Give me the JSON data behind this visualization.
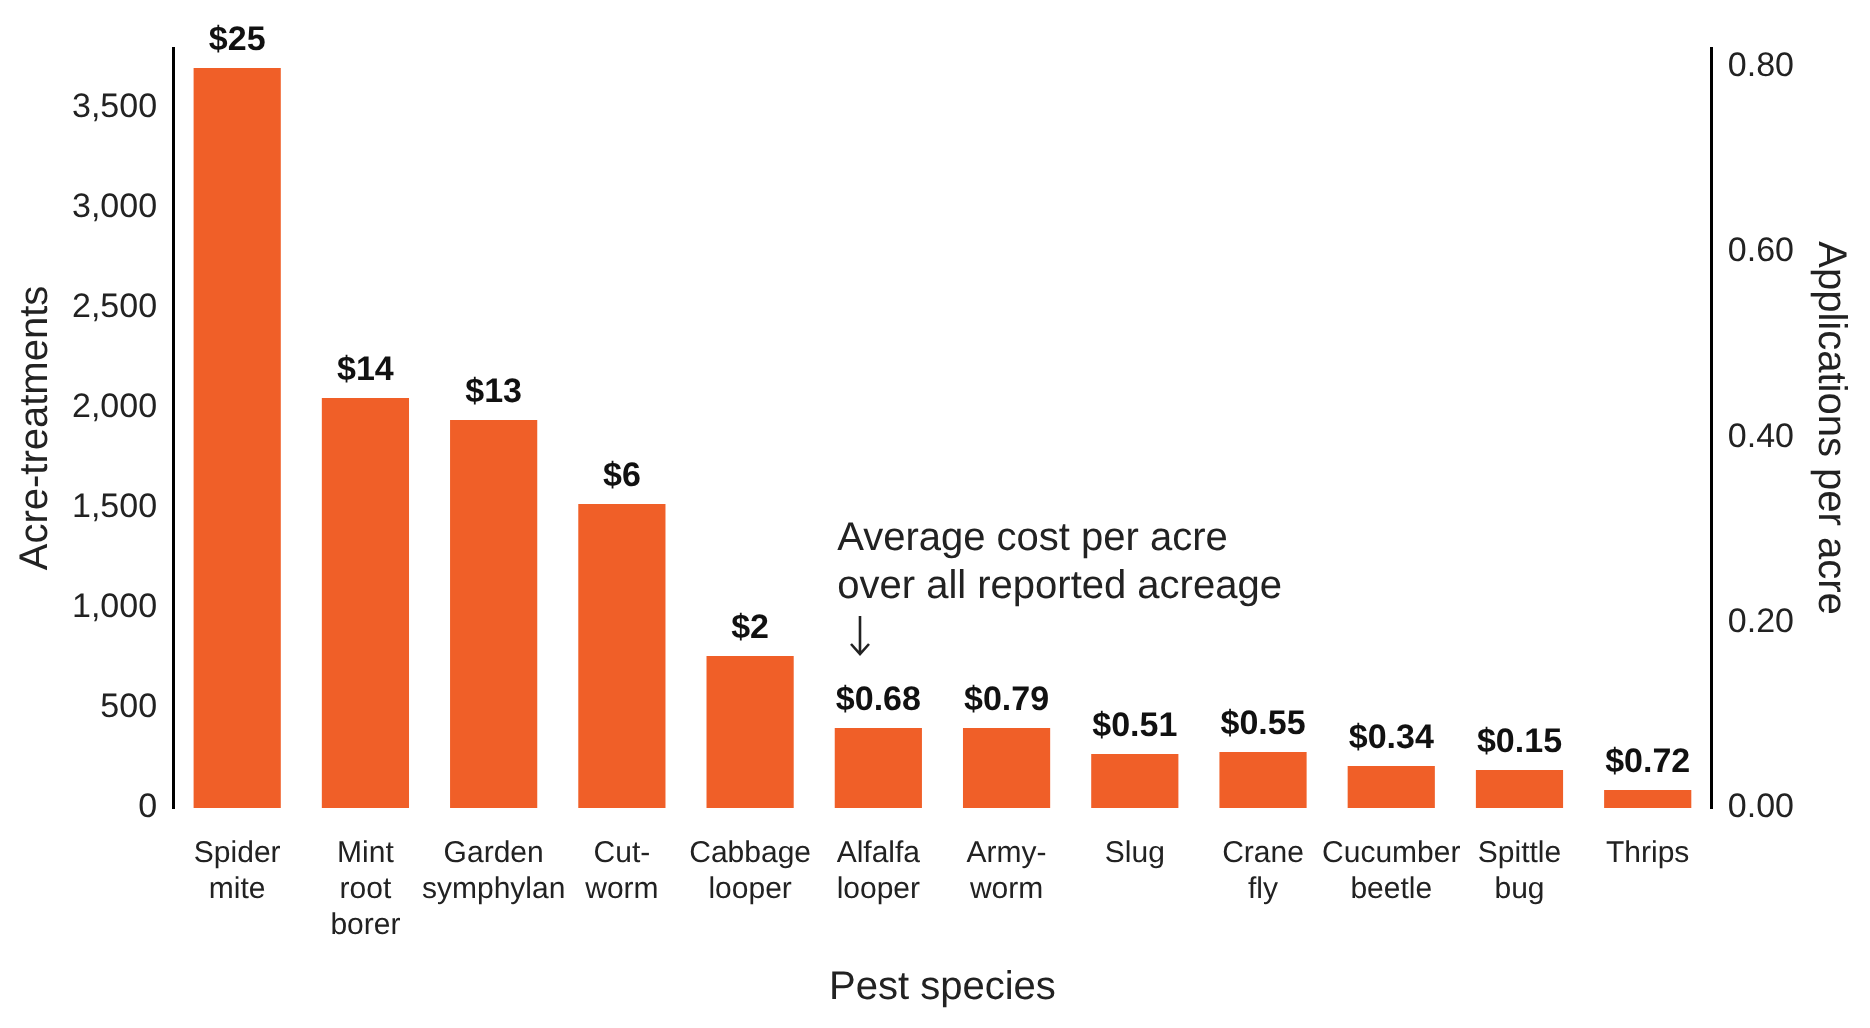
{
  "chart_data": {
    "type": "bar",
    "xlabel": "Pest species",
    "ylabel": "Acre-treatments",
    "y2label": "Applications per acre",
    "categories": [
      "Spider mite",
      "Mint root borer",
      "Garden symphylan",
      "Cut-worm",
      "Cabbage looper",
      "Alfalfa looper",
      "Army-worm",
      "Slug",
      "Crane fly",
      "Cucumber beetle",
      "Spittle bug",
      "Thrips"
    ],
    "values": [
      3700,
      2050,
      1940,
      1520,
      760,
      400,
      400,
      270,
      280,
      210,
      190,
      90
    ],
    "color": "#f05f28",
    "ylim": [
      0,
      3800
    ],
    "yticks": [
      0,
      {
        "value": 500,
        "label": "500"
      },
      {
        "value": 1000,
        "label": "1,000"
      },
      {
        "value": 1500,
        "label": "1,500"
      },
      {
        "value": 2000,
        "label": "2,000"
      },
      {
        "value": 2500,
        "label": "2,500"
      },
      {
        "value": 3000,
        "label": "3,000"
      },
      {
        "value": 3500,
        "label": "3,500"
      }
    ],
    "y2lim": [
      0,
      0.82
    ],
    "y2ticks": [
      {
        "value": 0,
        "label": "0.00"
      },
      {
        "value": 0.2,
        "label": "0.20"
      },
      {
        "value": 0.4,
        "label": "0.40"
      },
      {
        "value": 0.6,
        "label": "0.60"
      },
      {
        "value": 0.8,
        "label": "0.80"
      }
    ],
    "annotations": [
      {
        "text": "$25",
        "x": "Spider mite",
        "y": 3700
      },
      {
        "text": "$14",
        "x": "Mint root borer",
        "y": 2050
      },
      {
        "text": "$13",
        "x": "Garden symphylan",
        "y": 1940
      },
      {
        "text": "$6",
        "x": "Cut-worm",
        "y": 1520
      },
      {
        "text": "$2",
        "x": "Cabbage looper",
        "y": 760
      },
      {
        "text": "$0.68",
        "x": "Alfalfa looper",
        "y": 400
      },
      {
        "text": "$0.79",
        "x": "Army-worm",
        "y": 400
      },
      {
        "text": "$0.51",
        "x": "Slug",
        "y": 270
      },
      {
        "text": "$0.55",
        "x": "Crane fly",
        "y": 280
      },
      {
        "text": "$0.34",
        "x": "Cucumber beetle",
        "y": 210
      },
      {
        "text": "$0.15",
        "x": "Spittle bug",
        "y": 190
      },
      {
        "text": "$0.72",
        "x": "Thrips",
        "y": 90
      },
      "Average cost per acre over all reported acreage"
    ],
    "grid": false,
    "legend": false
  }
}
